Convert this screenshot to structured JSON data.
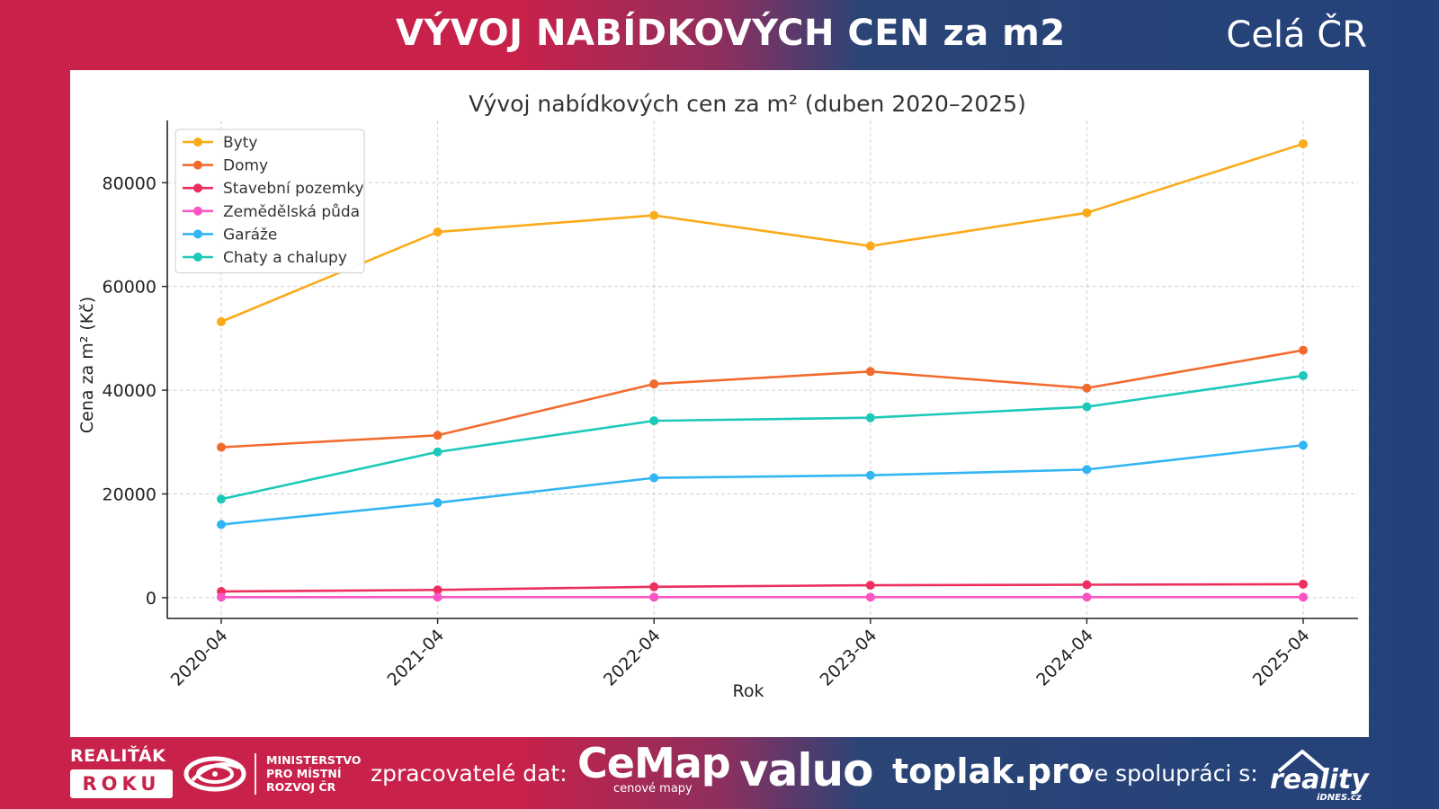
{
  "header": {
    "title": "VÝVOJ NABÍDKOVÝCH CEN za m2",
    "region": "Celá ČR"
  },
  "chart_data": {
    "type": "line",
    "title": "Vývoj nabídkových cen za m² (duben 2020–2025)",
    "xlabel": "Rok",
    "ylabel": "Cena za m² (Kč)",
    "categories": [
      "2020-04",
      "2021-04",
      "2022-04",
      "2023-04",
      "2024-04",
      "2025-04"
    ],
    "ylim": [
      -4000,
      92000
    ],
    "yticks": [
      0,
      20000,
      40000,
      60000,
      80000
    ],
    "grid": true,
    "legend_position": "top-left",
    "series": [
      {
        "name": "Byty",
        "color": "#fbaa19",
        "values": [
          53200,
          70500,
          73700,
          67800,
          74200,
          87500
        ]
      },
      {
        "name": "Domy",
        "color": "#f26b2e",
        "values": [
          29000,
          31300,
          41200,
          43600,
          40400,
          47700
        ]
      },
      {
        "name": "Stavební pozemky",
        "color": "#ec2f5e",
        "values": [
          1200,
          1500,
          2100,
          2400,
          2500,
          2600
        ]
      },
      {
        "name": "Zemědělská půda",
        "color": "#f956c4",
        "values": [
          100,
          100,
          100,
          100,
          100,
          100
        ]
      },
      {
        "name": "Garáže",
        "color": "#33b5f4",
        "values": [
          14100,
          18300,
          23100,
          23600,
          24700,
          29400
        ]
      },
      {
        "name": "Chaty a chalupy",
        "color": "#1cc9b8",
        "values": [
          19000,
          28100,
          34100,
          34700,
          36800,
          42800
        ]
      }
    ]
  },
  "footer": {
    "badge_top": "REALIŤÁK",
    "badge_bottom": "ROKU",
    "ministry_line1": "MINISTERSTVO",
    "ministry_line2": "PRO MÍSTNÍ",
    "ministry_line3": "ROZVOJ ČR",
    "processors_label": "zpracovatelé dat:",
    "cemap_name": "CeMap",
    "cemap_sub": "cenové mapy",
    "valuo_name": "valuo",
    "toplak_name": "toplak.pro",
    "coop_label": "ve spolupráci s:",
    "reality_name": "reality",
    "reality_sub": "iDNES.cz"
  }
}
